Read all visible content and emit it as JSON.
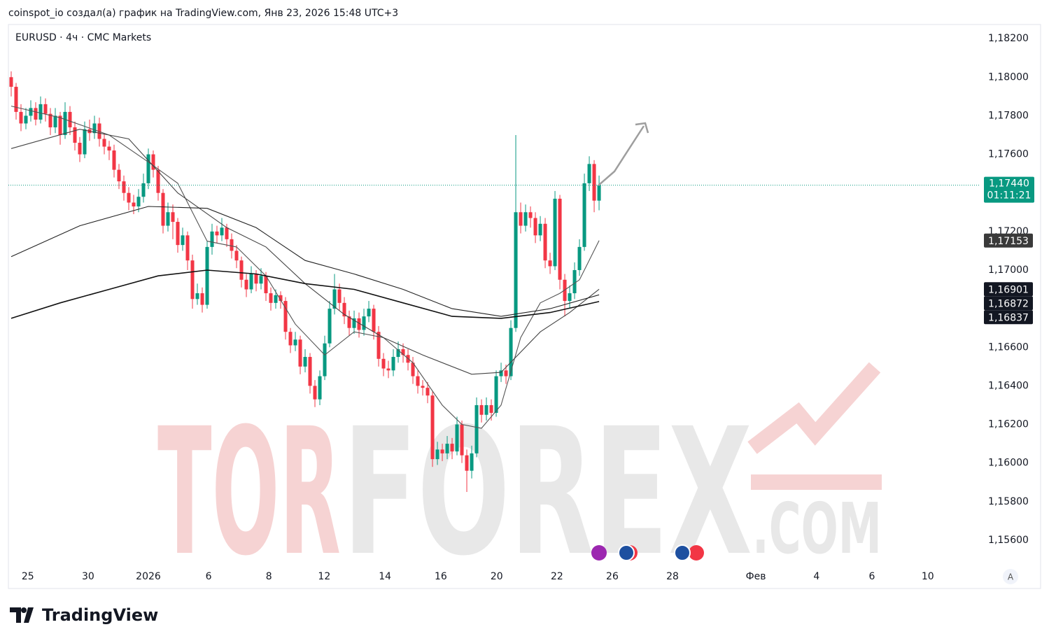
{
  "header": "coinspot_io создал(а) график на TradingView.com, Янв 23, 2026 15:48 UTC+3",
  "footer": {
    "logo": "TradingView",
    "scale_button": "A"
  },
  "watermark": [
    "TOR",
    "FOREX",
    ".COM"
  ],
  "chart_data": {
    "type": "candlestick",
    "title": "EURUSD · 4ч · CMC Markets",
    "up_color": "#089981",
    "down_color": "#f23645",
    "xlim": [
      -0.57,
      197.7
    ],
    "ylim": [
      1.15462,
      1.18273
    ],
    "xticks": [
      {
        "value": 3.4,
        "label": "25"
      },
      {
        "value": 15.7,
        "label": "30"
      },
      {
        "value": 28,
        "label": "2026"
      },
      {
        "value": 40.3,
        "label": "6"
      },
      {
        "value": 52.6,
        "label": "8"
      },
      {
        "value": 63.9,
        "label": "12"
      },
      {
        "value": 76.3,
        "label": "14"
      },
      {
        "value": 87.7,
        "label": "16"
      },
      {
        "value": 99.1,
        "label": "20"
      },
      {
        "value": 111.4,
        "label": "22"
      },
      {
        "value": 122.7,
        "label": "26"
      },
      {
        "value": 135,
        "label": "28"
      },
      {
        "value": 152,
        "label": "Фев"
      },
      {
        "value": 164.4,
        "label": "4"
      },
      {
        "value": 175.7,
        "label": "6"
      },
      {
        "value": 187.1,
        "label": "10"
      }
    ],
    "yticks": [
      {
        "value": 1.182,
        "label": "1,18200"
      },
      {
        "value": 1.18,
        "label": "1,18000"
      },
      {
        "value": 1.178,
        "label": "1,17800"
      },
      {
        "value": 1.176,
        "label": "1,17600"
      },
      {
        "value": 1.172,
        "label": "1,17200"
      },
      {
        "value": 1.17,
        "label": "1,17000"
      },
      {
        "value": 1.166,
        "label": "1,16600"
      },
      {
        "value": 1.164,
        "label": "1,16400"
      },
      {
        "value": 1.162,
        "label": "1,16200"
      },
      {
        "value": 1.16,
        "label": "1,16000"
      },
      {
        "value": 1.158,
        "label": "1,15800"
      },
      {
        "value": 1.156,
        "label": "1,15600"
      }
    ],
    "open": [
      1.18,
      1.1795,
      1.1782,
      1.1776,
      1.178,
      1.1784,
      1.1778,
      1.1786,
      1.1781,
      1.1774,
      1.178,
      1.177,
      1.1782,
      1.1774,
      1.1766,
      1.176,
      1.1773,
      1.1771,
      1.1776,
      1.1768,
      1.1764,
      1.1762,
      1.1752,
      1.1746,
      1.174,
      1.1735,
      1.1733,
      1.1738,
      1.1745,
      1.176,
      1.1752,
      1.174,
      1.1723,
      1.173,
      1.1725,
      1.1713,
      1.1718,
      1.1705,
      1.1685,
      1.1688,
      1.1682,
      1.1712,
      1.172,
      1.1718,
      1.1722,
      1.1716,
      1.171,
      1.1705,
      1.1695,
      1.169,
      1.1698,
      1.1693,
      1.1697,
      1.1688,
      1.1683,
      1.1687,
      1.1684,
      1.1668,
      1.1661,
      1.1664,
      1.165,
      1.1655,
      1.164,
      1.1633,
      1.1645,
      1.1662,
      1.168,
      1.169,
      1.1683,
      1.1676,
      1.167,
      1.1675,
      1.1669,
      1.1676,
      1.168,
      1.1668,
      1.1654,
      1.1649,
      1.1648,
      1.1655,
      1.1659,
      1.1656,
      1.1652,
      1.1645,
      1.164,
      1.1639,
      1.1635,
      1.1602,
      1.1607,
      1.1605,
      1.161,
      1.1606,
      1.162,
      1.1604,
      1.1596,
      1.1605,
      1.163,
      1.1625,
      1.163,
      1.1626,
      1.1645,
      1.1648,
      1.1645,
      1.167,
      1.173,
      1.1723,
      1.173,
      1.1727,
      1.1718,
      1.1724,
      1.1705,
      1.1702,
      1.1737,
      1.1695,
      1.1684,
      1.1688,
      1.17,
      1.1712,
      1.1745,
      1.1755,
      1.1736
    ],
    "high": [
      1.1803,
      1.1797,
      1.1786,
      1.1784,
      1.1788,
      1.1787,
      1.179,
      1.1789,
      1.1784,
      1.1784,
      1.1782,
      1.1787,
      1.1785,
      1.1777,
      1.1769,
      1.1777,
      1.1778,
      1.178,
      1.1779,
      1.1771,
      1.1767,
      1.1765,
      1.1755,
      1.1749,
      1.1743,
      1.1739,
      1.1742,
      1.175,
      1.1763,
      1.1762,
      1.1754,
      1.1742,
      1.1735,
      1.1734,
      1.1727,
      1.1722,
      1.172,
      1.1708,
      1.1693,
      1.1691,
      1.1715,
      1.1724,
      1.1723,
      1.1727,
      1.1724,
      1.1719,
      1.1713,
      1.1707,
      1.1698,
      1.1702,
      1.17,
      1.1701,
      1.1699,
      1.1691,
      1.169,
      1.1689,
      1.1686,
      1.167,
      1.1668,
      1.1666,
      1.1659,
      1.1657,
      1.1643,
      1.1648,
      1.1666,
      1.1684,
      1.1698,
      1.1693,
      1.1686,
      1.1679,
      1.1679,
      1.1678,
      1.168,
      1.1684,
      1.1682,
      1.1671,
      1.1657,
      1.1653,
      1.1659,
      1.1663,
      1.1662,
      1.1659,
      1.1655,
      1.1648,
      1.1643,
      1.1642,
      1.1637,
      1.1611,
      1.161,
      1.1614,
      1.1613,
      1.1624,
      1.1622,
      1.1607,
      1.1609,
      1.1634,
      1.1633,
      1.1634,
      1.1633,
      1.1648,
      1.1652,
      1.1651,
      1.1674,
      1.177,
      1.1735,
      1.1734,
      1.1733,
      1.173,
      1.1728,
      1.1727,
      1.1709,
      1.1741,
      1.1739,
      1.1698,
      1.1692,
      1.1704,
      1.1716,
      1.175,
      1.1759,
      1.1757,
      1.1749
    ],
    "low": [
      1.179,
      1.1778,
      1.1772,
      1.1773,
      1.1777,
      1.1775,
      1.1776,
      1.1777,
      1.177,
      1.1771,
      1.1765,
      1.1768,
      1.177,
      1.1762,
      1.1756,
      1.1758,
      1.1767,
      1.1768,
      1.1764,
      1.176,
      1.1757,
      1.1748,
      1.1742,
      1.1736,
      1.1731,
      1.1729,
      1.173,
      1.1735,
      1.1742,
      1.1748,
      1.1736,
      1.1719,
      1.172,
      1.1716,
      1.1709,
      1.171,
      1.17,
      1.168,
      1.1682,
      1.1678,
      1.168,
      1.1708,
      1.1714,
      1.1715,
      1.1712,
      1.1706,
      1.1701,
      1.1691,
      1.1686,
      1.1688,
      1.1689,
      1.169,
      1.1684,
      1.1679,
      1.168,
      1.168,
      1.1664,
      1.1657,
      1.1658,
      1.1646,
      1.1647,
      1.1636,
      1.1629,
      1.163,
      1.1643,
      1.166,
      1.1677,
      1.1679,
      1.1672,
      1.1666,
      1.1667,
      1.1665,
      1.1666,
      1.1673,
      1.1664,
      1.165,
      1.1645,
      1.1644,
      1.1645,
      1.1652,
      1.1652,
      1.1648,
      1.1641,
      1.1636,
      1.1635,
      1.1631,
      1.1598,
      1.1599,
      1.1601,
      1.1602,
      1.1602,
      1.1604,
      1.16,
      1.1585,
      1.1592,
      1.1603,
      1.1621,
      1.1622,
      1.1622,
      1.1624,
      1.1642,
      1.1641,
      1.1643,
      1.1668,
      1.1719,
      1.172,
      1.1722,
      1.1714,
      1.1715,
      1.1701,
      1.1698,
      1.17,
      1.169,
      1.1676,
      1.168,
      1.1685,
      1.1697,
      1.171,
      1.1741,
      1.173,
      1.1731
    ],
    "close": [
      1.1795,
      1.1782,
      1.1776,
      1.178,
      1.1784,
      1.1778,
      1.1786,
      1.1781,
      1.1774,
      1.178,
      1.177,
      1.1782,
      1.1774,
      1.1766,
      1.176,
      1.1773,
      1.1771,
      1.1776,
      1.1768,
      1.1764,
      1.1762,
      1.1752,
      1.1746,
      1.174,
      1.1735,
      1.1733,
      1.1738,
      1.1745,
      1.176,
      1.1752,
      1.174,
      1.1723,
      1.173,
      1.1725,
      1.1713,
      1.1718,
      1.1705,
      1.1685,
      1.1688,
      1.1682,
      1.1712,
      1.172,
      1.1718,
      1.1722,
      1.1716,
      1.171,
      1.1705,
      1.1695,
      1.169,
      1.1698,
      1.1693,
      1.1697,
      1.1688,
      1.1683,
      1.1687,
      1.1684,
      1.1668,
      1.1661,
      1.1664,
      1.165,
      1.1655,
      1.164,
      1.1633,
      1.1645,
      1.1662,
      1.168,
      1.169,
      1.1683,
      1.1676,
      1.167,
      1.1675,
      1.1669,
      1.1676,
      1.168,
      1.1668,
      1.1654,
      1.1649,
      1.1648,
      1.1655,
      1.1659,
      1.1656,
      1.1652,
      1.1645,
      1.164,
      1.1639,
      1.1635,
      1.1602,
      1.1607,
      1.1605,
      1.161,
      1.1606,
      1.162,
      1.1604,
      1.1596,
      1.1605,
      1.163,
      1.1625,
      1.163,
      1.1626,
      1.1645,
      1.1648,
      1.1645,
      1.167,
      1.173,
      1.1723,
      1.173,
      1.1727,
      1.1718,
      1.1724,
      1.1705,
      1.1702,
      1.1737,
      1.1695,
      1.1684,
      1.1688,
      1.17,
      1.1712,
      1.1745,
      1.1755,
      1.1736,
      1.1744
    ],
    "last_price": {
      "value": 1.1744,
      "label": "1,17440"
    },
    "countdown": "01:11:21",
    "ma": [
      {
        "color": "#555555",
        "x": [
          0,
          10,
          20,
          28,
          34,
          40,
          46,
          52,
          58,
          64,
          70,
          76,
          82,
          88,
          92,
          96,
          100,
          104,
          108,
          112,
          116,
          120
        ],
        "values": [
          1.1785,
          1.1779,
          1.177,
          1.1756,
          1.1745,
          1.1715,
          1.1712,
          1.1697,
          1.1672,
          1.1656,
          1.1668,
          1.1665,
          1.1652,
          1.163,
          1.162,
          1.1618,
          1.163,
          1.1665,
          1.1683,
          1.1688,
          1.1695,
          1.17153
        ],
        "end_label": "1,17153"
      },
      {
        "color": "#444444",
        "x": [
          0,
          14,
          24,
          34,
          44,
          52,
          60,
          68,
          76,
          84,
          94,
          100,
          108,
          114,
          120
        ],
        "values": [
          1.1763,
          1.1773,
          1.1768,
          1.174,
          1.1722,
          1.1712,
          1.1693,
          1.1677,
          1.1665,
          1.1656,
          1.1646,
          1.1647,
          1.1668,
          1.1678,
          1.16901
        ],
        "end_label": "1,16901"
      },
      {
        "color": "#222222",
        "x": [
          0,
          14,
          28,
          40,
          50,
          60,
          70,
          80,
          90,
          100,
          110,
          120
        ],
        "values": [
          1.1707,
          1.1723,
          1.1733,
          1.1732,
          1.1722,
          1.1705,
          1.1698,
          1.169,
          1.168,
          1.1676,
          1.168,
          1.16872
        ],
        "end_label": "1,16872"
      },
      {
        "color": "#111111",
        "x": [
          0,
          10,
          20,
          30,
          40,
          50,
          60,
          70,
          80,
          90,
          100,
          110,
          120
        ],
        "values": [
          1.1675,
          1.1683,
          1.169,
          1.1697,
          1.17,
          1.1698,
          1.1693,
          1.169,
          1.1683,
          1.1676,
          1.1675,
          1.1678,
          1.16837
        ],
        "end_label": "1,16837"
      }
    ]
  }
}
